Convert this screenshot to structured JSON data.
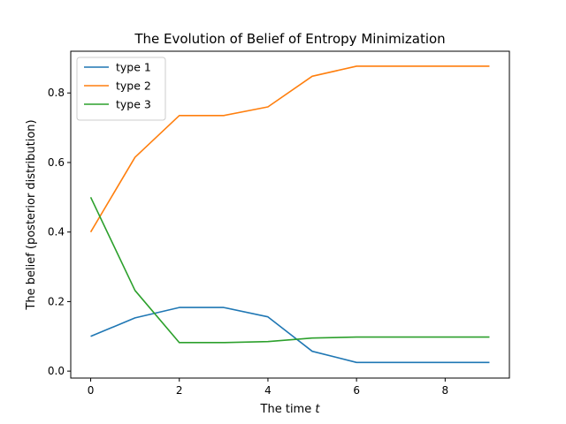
{
  "chart_data": {
    "type": "line",
    "title": "The Evolution of Belief of Entropy Minimization",
    "xlabel": "The time t",
    "ylabel": "The belief (posterior distribution)",
    "xlim": [
      -0.45,
      9.45
    ],
    "ylim": [
      -0.02,
      0.92
    ],
    "xticks": [
      0,
      2,
      4,
      6,
      8
    ],
    "yticks": [
      0.0,
      0.2,
      0.4,
      0.6,
      0.8
    ],
    "xtick_labels": [
      "0",
      "2",
      "4",
      "6",
      "8"
    ],
    "ytick_labels": [
      "0.0",
      "0.2",
      "0.4",
      "0.6",
      "0.8"
    ],
    "grid": false,
    "legend_position": "top-left",
    "x": [
      0,
      1,
      2,
      3,
      4,
      5,
      6,
      7,
      8,
      9
    ],
    "series": [
      {
        "name": "type 1",
        "color": "#1f77b4",
        "values": [
          0.1,
          0.153,
          0.183,
          0.183,
          0.156,
          0.057,
          0.025,
          0.025,
          0.025,
          0.025
        ]
      },
      {
        "name": "type 2",
        "color": "#ff7f0e",
        "values": [
          0.4,
          0.615,
          0.735,
          0.735,
          0.76,
          0.848,
          0.877,
          0.877,
          0.877,
          0.877
        ]
      },
      {
        "name": "type 3",
        "color": "#2ca02c",
        "values": [
          0.5,
          0.232,
          0.082,
          0.082,
          0.085,
          0.095,
          0.098,
          0.098,
          0.098,
          0.098
        ]
      }
    ]
  }
}
